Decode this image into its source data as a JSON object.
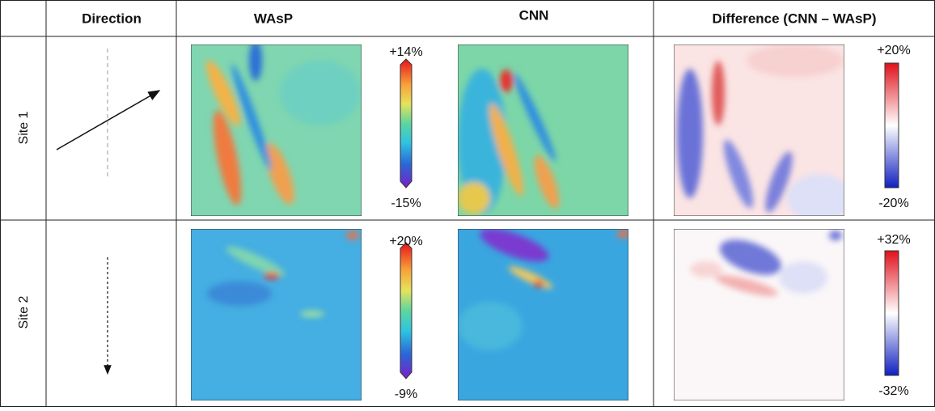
{
  "table": {
    "header": [
      "Direction",
      "WAsP",
      "CNN",
      "Difference (CNN – WAsP)"
    ],
    "rows": [
      {
        "label": "Site 1",
        "colorbar": {
          "max": "+14%",
          "min": "-15%"
        },
        "difference_colorbar": {
          "max": "+20%",
          "min": "-20%"
        }
      },
      {
        "label": "Site 2",
        "colorbar": {
          "max": "+20%",
          "min": "-9%"
        },
        "difference_colorbar": {
          "max": "+32%",
          "min": "-32%"
        }
      }
    ]
  }
}
